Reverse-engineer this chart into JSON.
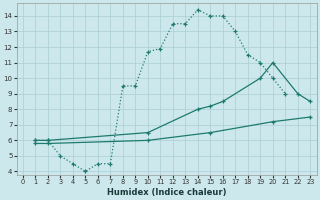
{
  "xlabel": "Humidex (Indice chaleur)",
  "bg_color": "#cce8ec",
  "grid_color": "#aacfd5",
  "line_color": "#1e7a6e",
  "xlim": [
    -0.5,
    23.5
  ],
  "ylim": [
    3.8,
    14.8
  ],
  "yticks": [
    4,
    5,
    6,
    7,
    8,
    9,
    10,
    11,
    12,
    13,
    14
  ],
  "xticks": [
    0,
    1,
    2,
    3,
    4,
    5,
    6,
    7,
    8,
    9,
    10,
    11,
    12,
    13,
    14,
    15,
    16,
    17,
    18,
    19,
    20,
    21,
    22,
    23
  ],
  "series1_x": [
    1,
    2,
    3,
    4,
    5,
    6,
    7,
    8,
    9,
    10,
    11,
    12,
    13,
    14,
    15,
    16,
    17,
    18,
    19,
    20,
    21
  ],
  "series1_y": [
    6.0,
    6.0,
    5.0,
    4.5,
    4.0,
    4.5,
    4.5,
    9.5,
    9.5,
    11.7,
    11.9,
    13.5,
    13.5,
    14.4,
    14.0,
    14.0,
    13.0,
    11.5,
    11.0,
    10.0,
    9.0
  ],
  "series2_x": [
    1,
    2,
    10,
    14,
    15,
    16,
    19,
    20,
    22,
    23
  ],
  "series2_y": [
    6.0,
    6.0,
    6.5,
    8.0,
    8.2,
    8.5,
    10.0,
    11.0,
    9.0,
    8.5
  ],
  "series3_x": [
    1,
    2,
    10,
    15,
    20,
    23
  ],
  "series3_y": [
    5.8,
    5.8,
    6.0,
    6.5,
    7.2,
    7.5
  ]
}
